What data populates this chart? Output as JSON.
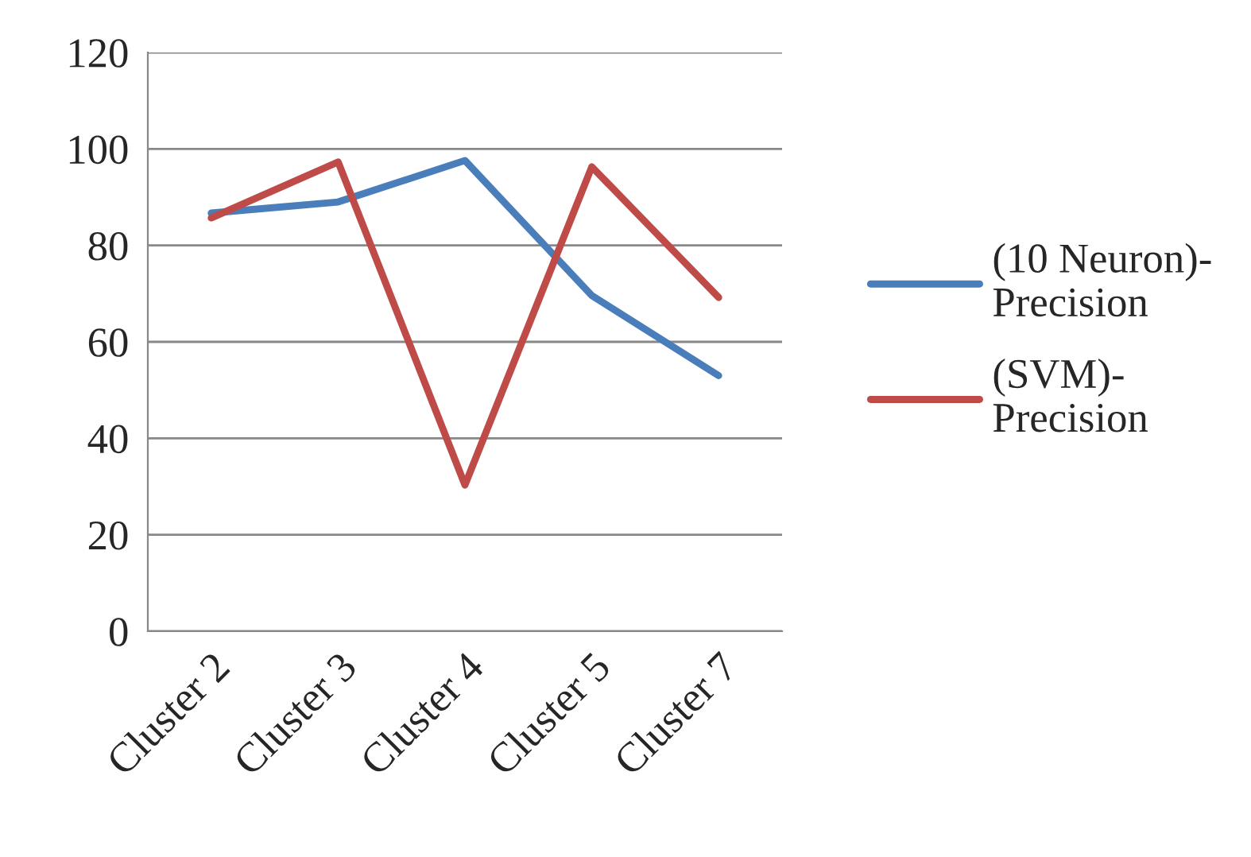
{
  "chart_data": {
    "type": "line",
    "categories": [
      "Cluster 2",
      "Cluster 3",
      "Cluster 4",
      "Cluster 5",
      "Cluster 7"
    ],
    "series": [
      {
        "name": "(10 Neuron)-Precision",
        "color": "#4a7ebb",
        "values": [
          86.7,
          89,
          97.6,
          69.6,
          53
        ]
      },
      {
        "name": "(SVM)-Precision",
        "color": "#be4b48",
        "values": [
          85.7,
          97.3,
          30.3,
          96.3,
          69.2
        ]
      }
    ],
    "ylim": [
      0,
      120
    ],
    "yticks": [
      0,
      20,
      40,
      60,
      80,
      100,
      120
    ],
    "grid": "y",
    "legend": "right",
    "marker": "none",
    "line_style": "solid"
  }
}
